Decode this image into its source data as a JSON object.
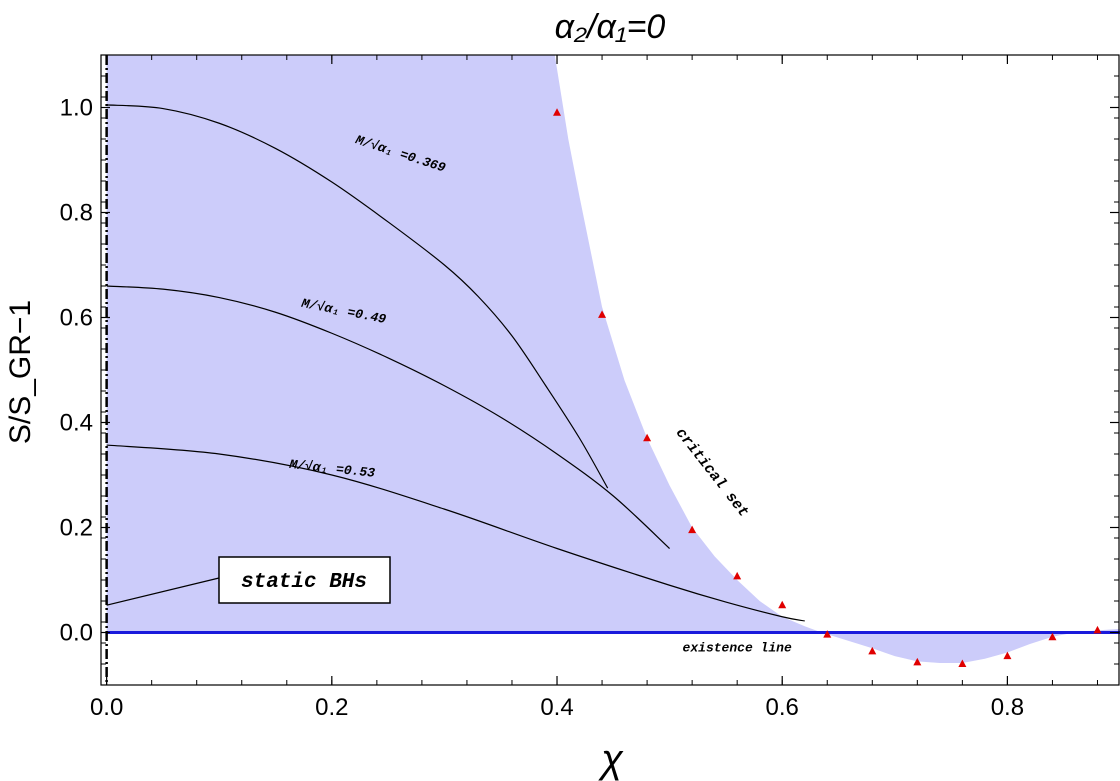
{
  "chart_data": {
    "type": "line",
    "title": "α₂/α₁=0",
    "xlabel": "χ",
    "ylabel": "S/S_GR−1",
    "xlim": [
      -0.005,
      0.9
    ],
    "ylim": [
      -0.1,
      1.1
    ],
    "x_ticks": [
      "0.0",
      "0.2",
      "0.4",
      "0.6",
      "0.8"
    ],
    "x_tick_values": [
      0.0,
      0.2,
      0.4,
      0.6,
      0.8
    ],
    "y_ticks": [
      "0.0",
      "0.2",
      "0.4",
      "0.6",
      "0.8",
      "1.0"
    ],
    "y_tick_values": [
      0.0,
      0.2,
      0.4,
      0.6,
      0.8,
      1.0
    ],
    "grid": false,
    "colors": {
      "fill": "#ccccfa",
      "existence_line": "#1a1adc",
      "markers": "#e00000",
      "curves": "#000000"
    },
    "region_boundary": {
      "x": [
        0.398,
        0.41,
        0.42,
        0.44,
        0.46,
        0.48,
        0.5,
        0.52,
        0.54,
        0.56,
        0.58,
        0.6,
        0.62,
        0.635,
        0.65,
        0.68,
        0.7,
        0.72,
        0.74,
        0.76,
        0.78,
        0.8,
        0.82,
        0.84,
        0.86,
        0.88,
        0.9
      ],
      "y": [
        1.1,
        0.94,
        0.83,
        0.62,
        0.48,
        0.37,
        0.28,
        0.2,
        0.145,
        0.1,
        0.06,
        0.03,
        0.012,
        0.0,
        -0.01,
        -0.03,
        -0.045,
        -0.055,
        -0.058,
        -0.058,
        -0.05,
        -0.038,
        -0.022,
        -0.008,
        0.0,
        0.004,
        0.007
      ]
    },
    "critical_set_points": {
      "x": [
        0.4,
        0.44,
        0.48,
        0.52,
        0.56,
        0.6,
        0.64,
        0.68,
        0.72,
        0.76,
        0.8,
        0.84,
        0.88
      ],
      "y": [
        0.99,
        0.605,
        0.37,
        0.195,
        0.107,
        0.052,
        -0.004,
        -0.036,
        -0.057,
        -0.06,
        -0.045,
        -0.009,
        0.004
      ]
    },
    "series": [
      {
        "name": "M/√α₁ =0.369",
        "x": [
          0.0,
          0.05,
          0.1,
          0.15,
          0.2,
          0.25,
          0.3,
          0.33,
          0.36,
          0.39,
          0.42,
          0.445
        ],
        "y": [
          1.005,
          0.998,
          0.97,
          0.922,
          0.858,
          0.782,
          0.7,
          0.64,
          0.565,
          0.47,
          0.37,
          0.275
        ]
      },
      {
        "name": "M/√α₁ =0.49",
        "x": [
          0.0,
          0.05,
          0.1,
          0.15,
          0.2,
          0.25,
          0.3,
          0.35,
          0.4,
          0.45,
          0.5
        ],
        "y": [
          0.66,
          0.654,
          0.638,
          0.61,
          0.57,
          0.523,
          0.47,
          0.41,
          0.34,
          0.26,
          0.16
        ]
      },
      {
        "name": "M/√α₁ =0.53",
        "x": [
          0.0,
          0.1,
          0.2,
          0.3,
          0.4,
          0.5,
          0.55,
          0.6,
          0.62
        ],
        "y": [
          0.357,
          0.34,
          0.3,
          0.235,
          0.16,
          0.09,
          0.058,
          0.03,
          0.022
        ]
      }
    ],
    "static_bhs_connector": {
      "x": [
        0.0,
        0.1
      ],
      "y": [
        0.052,
        0.1
      ]
    },
    "annotations": {
      "static": "static BHs",
      "critical": "critical set",
      "existence": "existence line"
    }
  }
}
